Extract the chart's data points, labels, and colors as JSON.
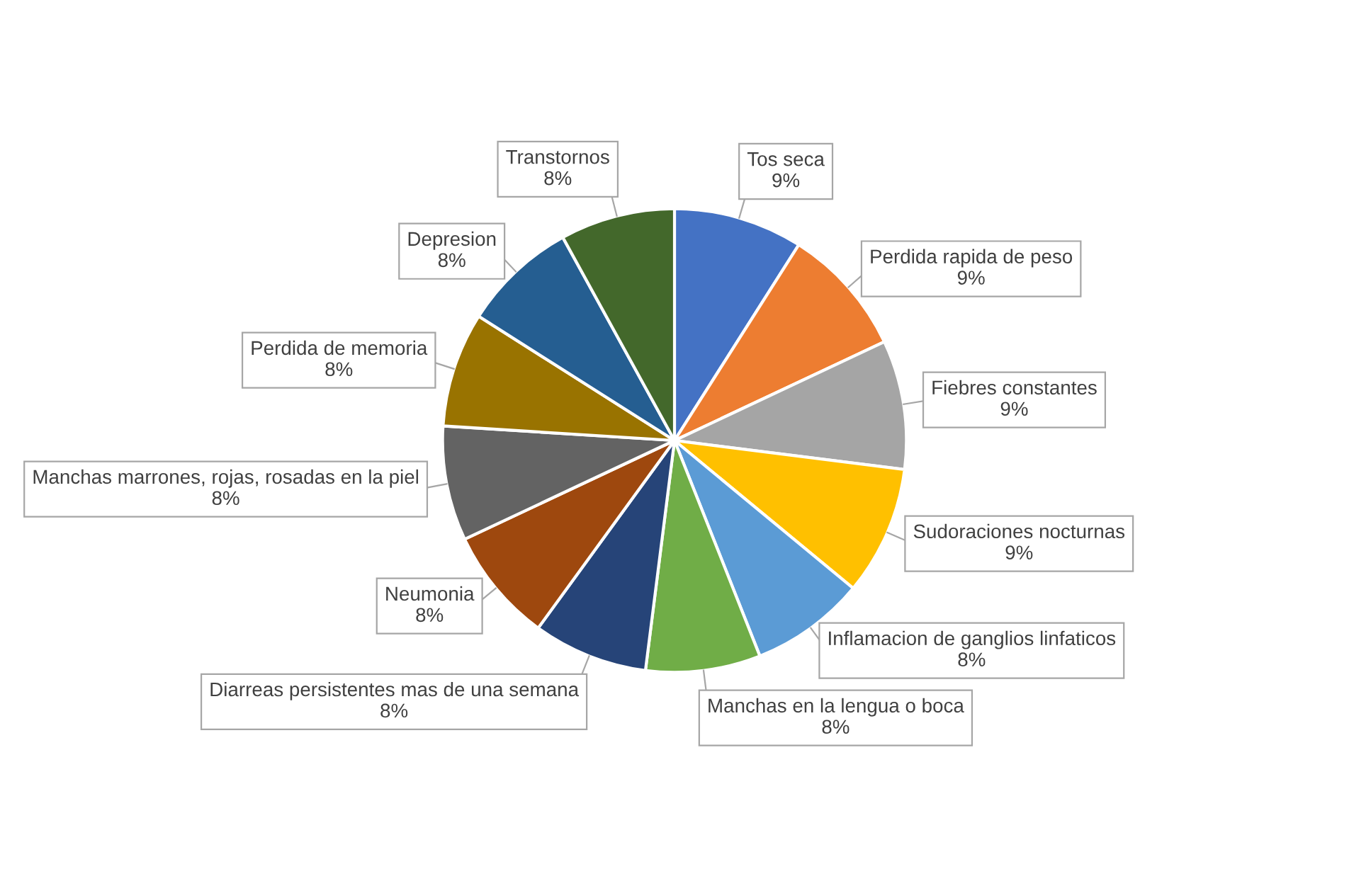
{
  "chart_data": {
    "type": "pie",
    "categories": [
      "Tos seca",
      "Perdida rapida de peso",
      "Fiebres constantes",
      "Sudoraciones nocturnas",
      "Inflamacion de ganglios linfaticos",
      "Manchas en la lengua o boca",
      "Diarreas persistentes mas de una semana",
      "Neumonia",
      "Manchas marrones, rojas, rosadas en la piel",
      "Perdida de memoria",
      "Depresion",
      "Transtornos"
    ],
    "values": [
      9,
      9,
      9,
      9,
      8,
      8,
      8,
      8,
      8,
      8,
      8,
      8
    ],
    "colors": [
      "#4472c4",
      "#ed7d31",
      "#a5a5a5",
      "#ffc000",
      "#5b9bd5",
      "#70ad47",
      "#264478",
      "#9e480e",
      "#636363",
      "#997300",
      "#255e91",
      "#43682b"
    ],
    "value_labels": [
      "9%",
      "9%",
      "9%",
      "9%",
      "8%",
      "8%",
      "8%",
      "8%",
      "8%",
      "8%",
      "8%",
      "8%"
    ],
    "legend": false
  }
}
